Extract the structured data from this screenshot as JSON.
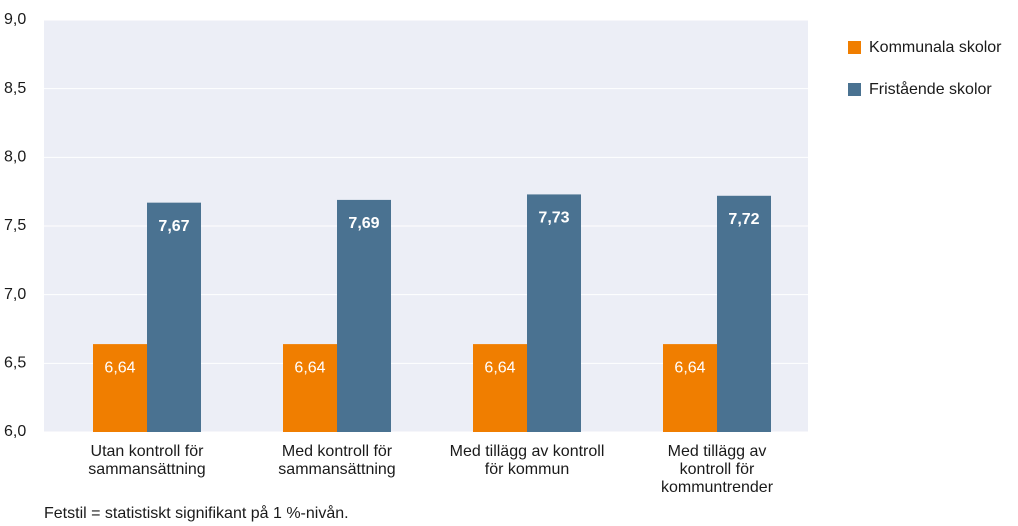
{
  "chart_data": {
    "type": "bar",
    "categories": [
      "Utan kontroll för\nsammansättning",
      "Med kontroll för\nsammansättning",
      "Med tillägg av kontroll\nför kommun",
      "Med tillägg av\nkontroll för\nkommuntrender"
    ],
    "series": [
      {
        "name": "Kommunala skolor",
        "color": "#f07e00",
        "values": [
          6.64,
          6.64,
          6.64,
          6.64
        ],
        "value_labels": [
          "6,64",
          "6,64",
          "6,64",
          "6,64"
        ]
      },
      {
        "name": "Fristående skolor",
        "color": "#4a7291",
        "values": [
          7.67,
          7.69,
          7.73,
          7.72
        ],
        "value_labels": [
          "7,67",
          "7,69",
          "7,73",
          "7,72"
        ]
      }
    ],
    "ylim": [
      6.0,
      9.0
    ],
    "yticks": [
      {
        "value": 6.0,
        "label": "6,0"
      },
      {
        "value": 6.5,
        "label": "6,5"
      },
      {
        "value": 7.0,
        "label": "7,0"
      },
      {
        "value": 7.5,
        "label": "7,5"
      },
      {
        "value": 8.0,
        "label": "8,0"
      },
      {
        "value": 8.5,
        "label": "8,5"
      },
      {
        "value": 9.0,
        "label": "9,0"
      }
    ],
    "note": "Fetstil = statistiskt signifikant på 1 %-nivån.",
    "legend": "right"
  }
}
